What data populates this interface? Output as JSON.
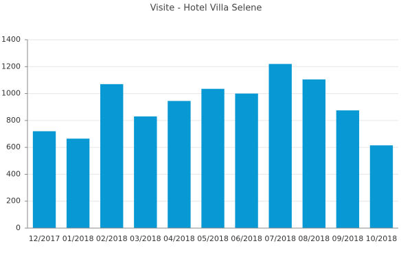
{
  "chart_data": {
    "type": "bar",
    "title": "Visite - Hotel Villa Selene",
    "categories": [
      "12/2017",
      "01/2018",
      "02/2018",
      "03/2018",
      "04/2018",
      "05/2018",
      "06/2018",
      "07/2018",
      "08/2018",
      "09/2018",
      "10/2018"
    ],
    "values": [
      720,
      665,
      1070,
      830,
      945,
      1035,
      1000,
      1220,
      1105,
      875,
      615
    ],
    "color": "#0899d4",
    "ylim": [
      0,
      1400
    ],
    "yticks": [
      0,
      200,
      400,
      600,
      800,
      1000,
      1200,
      1400
    ],
    "grid": true
  }
}
